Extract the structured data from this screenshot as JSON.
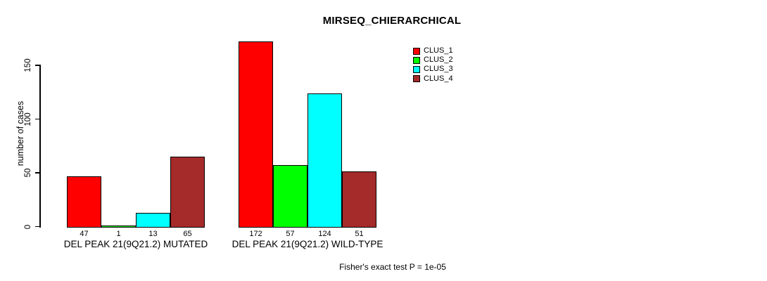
{
  "title": "MIRSEQ_CHIERARCHICAL",
  "colors": {
    "background": "#FFFFFF",
    "axis": "#000000",
    "text": "#000000",
    "bar_border": "#000000"
  },
  "chart_data": {
    "type": "bar",
    "title": "MIRSEQ_CHIERARCHICAL",
    "xlabel": "",
    "ylabel": "number of cases",
    "ylim": [
      0,
      172
    ],
    "yticks": [
      0,
      50,
      100,
      150
    ],
    "grid": false,
    "legend_position": "top-right",
    "categories": [
      "DEL PEAK 21(9Q21.2) MUTATED",
      "DEL PEAK 21(9Q21.2) WILD-TYPE"
    ],
    "series": [
      {
        "name": "CLUS_1",
        "color": "#FF0000",
        "values": [
          47,
          172
        ]
      },
      {
        "name": "CLUS_2",
        "color": "#00FF00",
        "values": [
          1,
          57
        ]
      },
      {
        "name": "CLUS_3",
        "color": "#00FFFF",
        "values": [
          13,
          124
        ]
      },
      {
        "name": "CLUS_4",
        "color": "#A52A2A",
        "values": [
          65,
          51
        ]
      }
    ],
    "annotation": "Fisher's exact test P = 1e-05"
  }
}
